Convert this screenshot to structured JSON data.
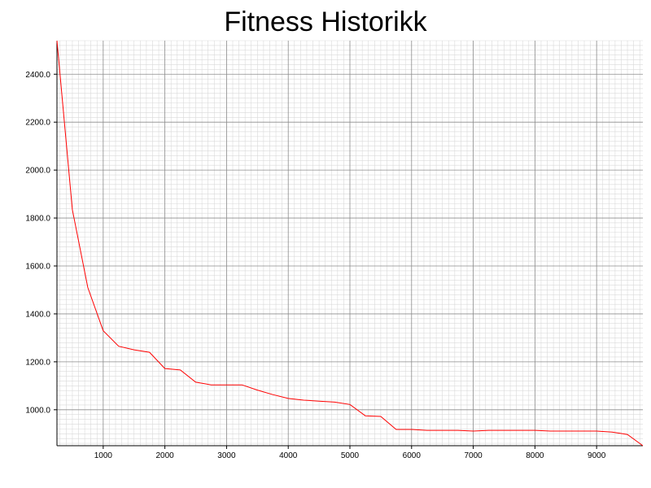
{
  "chart_data": {
    "type": "line",
    "title": "Fitness Historikk",
    "xlabel": "",
    "ylabel": "",
    "xlim": [
      250,
      9750
    ],
    "ylim": [
      850,
      2540
    ],
    "grid": true,
    "x_ticks": [
      1000,
      2000,
      3000,
      4000,
      5000,
      6000,
      7000,
      8000,
      9000
    ],
    "x_tick_labels": [
      "1000",
      "2000",
      "3000",
      "4000",
      "5000",
      "6000",
      "7000",
      "8000",
      "9000"
    ],
    "y_ticks": [
      1000,
      1200,
      1400,
      1600,
      1800,
      2000,
      2200,
      2400
    ],
    "y_tick_labels": [
      "1000.0",
      "1200.0",
      "1400.0",
      "1600.0",
      "1800.0",
      "2000.0",
      "2200.0",
      "2400.0"
    ],
    "series": [
      {
        "color": "#ff0000",
        "x": [
          250,
          500,
          750,
          1000,
          1250,
          1500,
          1750,
          2000,
          2250,
          2500,
          2750,
          3000,
          3250,
          3500,
          3750,
          4000,
          4250,
          4500,
          4750,
          5000,
          5250,
          5500,
          5750,
          6000,
          6250,
          6500,
          6750,
          7000,
          7250,
          7500,
          7750,
          8000,
          8250,
          8500,
          8750,
          9000,
          9250,
          9500,
          9750
        ],
        "y": [
          2540,
          1835,
          1510,
          1330,
          1265,
          1250,
          1240,
          1172,
          1166,
          1115,
          1104,
          1104,
          1104,
          1082,
          1063,
          1047,
          1040,
          1036,
          1032,
          1022,
          975,
          972,
          918,
          918,
          914,
          914,
          914,
          911,
          914,
          914,
          914,
          914,
          911,
          911,
          911,
          911,
          907,
          897,
          850
        ]
      }
    ]
  }
}
